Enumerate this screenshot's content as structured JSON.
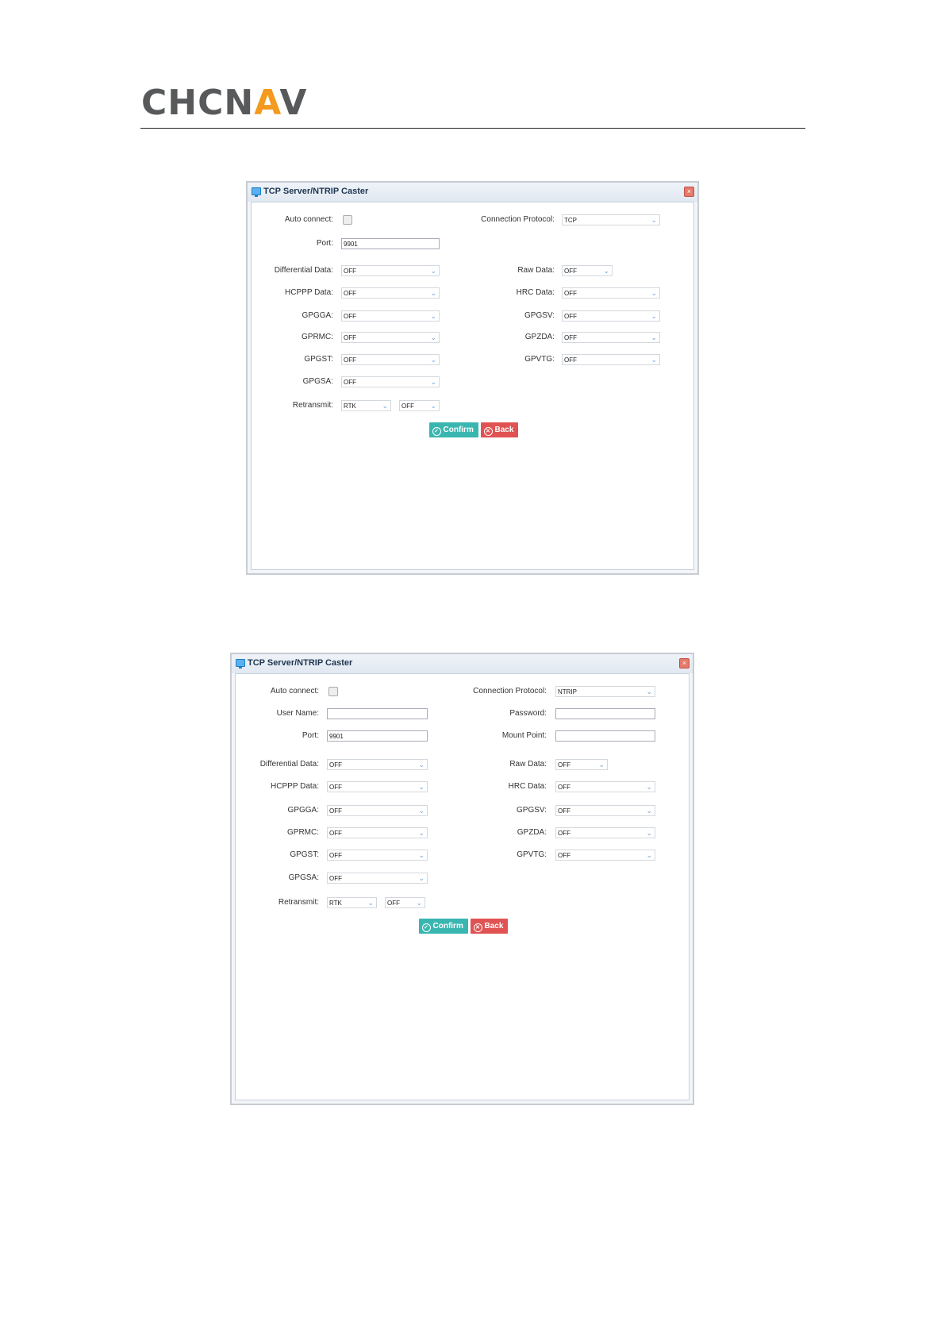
{
  "header": {
    "logo_text": "CHCNAV"
  },
  "colors": {
    "confirm": "#3ab6b0",
    "back": "#e05352",
    "logo_accent": "#f39a1f"
  },
  "dialogs": [
    {
      "title": "TCP Server/NTRIP Caster",
      "auto_connect_label": "Auto connect:",
      "auto_connect_checked": false,
      "protocol_label": "Connection Protocol:",
      "protocol_value": "TCP",
      "port_label": "Port:",
      "port_value": "9901",
      "left_rows": [
        {
          "label": "Differential Data:",
          "value": "OFF"
        },
        {
          "label": "HCPPP Data:",
          "value": "OFF"
        },
        {
          "label": "GPGGA:",
          "value": "OFF"
        },
        {
          "label": "GPRMC:",
          "value": "OFF"
        },
        {
          "label": "GPGST:",
          "value": "OFF"
        },
        {
          "label": "GPGSA:",
          "value": "OFF"
        }
      ],
      "right_rows": [
        {
          "label": "Raw Data:",
          "value": "OFF"
        },
        {
          "label": "HRC Data:",
          "value": "OFF"
        },
        {
          "label": "GPGSV:",
          "value": "OFF"
        },
        {
          "label": "GPZDA:",
          "value": "OFF"
        },
        {
          "label": "GPVTG:",
          "value": "OFF"
        }
      ],
      "retransmit_label": "Retransmit:",
      "retransmit_values": [
        "RTK",
        "OFF"
      ],
      "confirm_label": "Confirm",
      "back_label": "Back"
    },
    {
      "title": "TCP Server/NTRIP Caster",
      "auto_connect_label": "Auto connect:",
      "auto_connect_checked": false,
      "protocol_label": "Connection Protocol:",
      "protocol_value": "NTRIP",
      "user_label": "User Name:",
      "user_value": "",
      "password_label": "Password:",
      "password_value": "",
      "port_label": "Port:",
      "port_value": "9901",
      "mount_label": "Mount Point:",
      "mount_value": "",
      "left_rows": [
        {
          "label": "Differential Data:",
          "value": "OFF"
        },
        {
          "label": "HCPPP Data:",
          "value": "OFF"
        },
        {
          "label": "GPGGA:",
          "value": "OFF"
        },
        {
          "label": "GPRMC:",
          "value": "OFF"
        },
        {
          "label": "GPGST:",
          "value": "OFF"
        },
        {
          "label": "GPGSA:",
          "value": "OFF"
        }
      ],
      "right_rows": [
        {
          "label": "Raw Data:",
          "value": "OFF"
        },
        {
          "label": "HRC Data:",
          "value": "OFF"
        },
        {
          "label": "GPGSV:",
          "value": "OFF"
        },
        {
          "label": "GPZDA:",
          "value": "OFF"
        },
        {
          "label": "GPVTG:",
          "value": "OFF"
        }
      ],
      "retransmit_label": "Retransmit:",
      "retransmit_values": [
        "RTK",
        "OFF"
      ],
      "confirm_label": "Confirm",
      "back_label": "Back"
    }
  ]
}
